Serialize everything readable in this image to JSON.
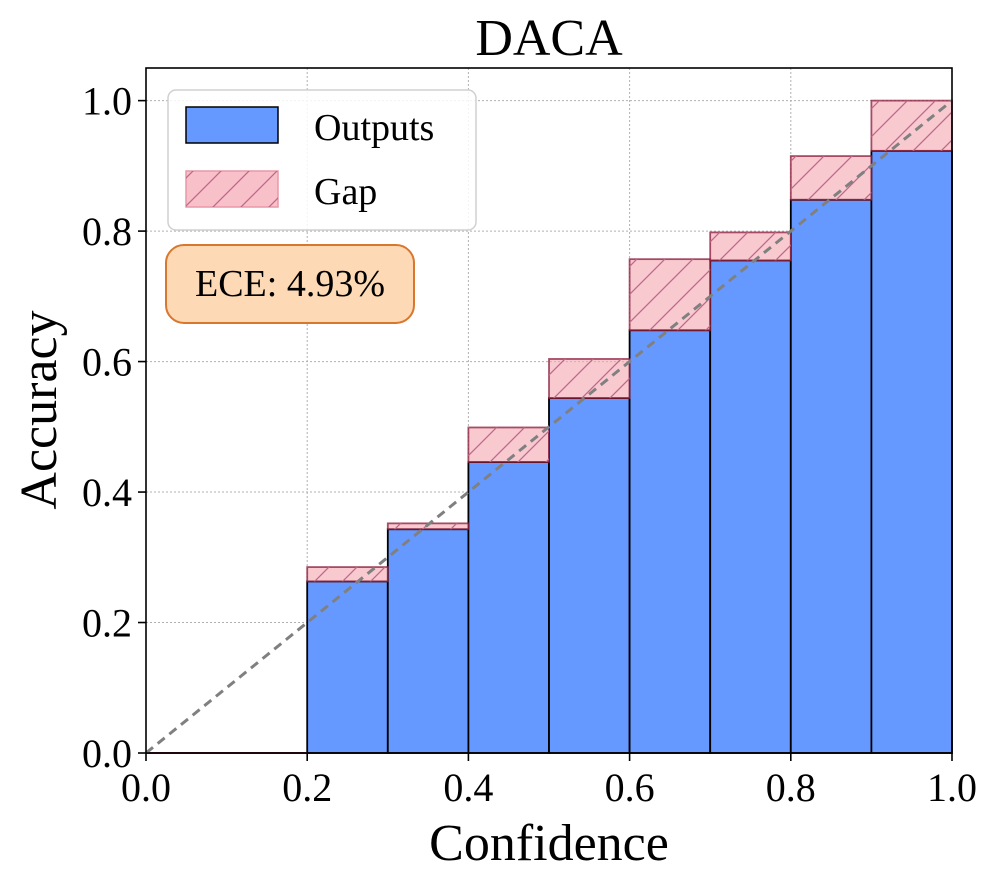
{
  "chart_data": {
    "type": "bar",
    "title": "DACA",
    "xlabel": "Confidence",
    "ylabel": "Accuracy",
    "xlim": [
      0.0,
      1.0
    ],
    "ylim": [
      0.0,
      1.05
    ],
    "xticks": [
      "0.0",
      "0.2",
      "0.4",
      "0.6",
      "0.8",
      "1.0"
    ],
    "yticks": [
      "0.0",
      "0.2",
      "0.4",
      "0.6",
      "0.8",
      "1.0"
    ],
    "grid": true,
    "legend_position": "top-left",
    "bins": [
      {
        "x0": 0.0,
        "x1": 0.1,
        "output": 0.0,
        "gap_top": 0.0
      },
      {
        "x0": 0.1,
        "x1": 0.2,
        "output": 0.0,
        "gap_top": 0.0
      },
      {
        "x0": 0.2,
        "x1": 0.3,
        "output": 0.263,
        "gap_top": 0.285
      },
      {
        "x0": 0.3,
        "x1": 0.4,
        "output": 0.343,
        "gap_top": 0.352
      },
      {
        "x0": 0.4,
        "x1": 0.5,
        "output": 0.446,
        "gap_top": 0.499
      },
      {
        "x0": 0.5,
        "x1": 0.6,
        "output": 0.544,
        "gap_top": 0.604
      },
      {
        "x0": 0.6,
        "x1": 0.7,
        "output": 0.648,
        "gap_top": 0.757
      },
      {
        "x0": 0.7,
        "x1": 0.8,
        "output": 0.755,
        "gap_top": 0.798
      },
      {
        "x0": 0.8,
        "x1": 0.9,
        "output": 0.848,
        "gap_top": 0.915
      },
      {
        "x0": 0.9,
        "x1": 1.0,
        "output": 0.923,
        "gap_top": 1.0
      }
    ],
    "series": [
      {
        "name": "Outputs",
        "color": "#6699ff"
      },
      {
        "name": "Gap",
        "color": "#f4a6b0"
      }
    ],
    "diagonal_color": "#808080",
    "annotation": {
      "text": "ECE: 4.93%",
      "fill": "#fdd9b5",
      "edge": "#d9772e"
    }
  }
}
